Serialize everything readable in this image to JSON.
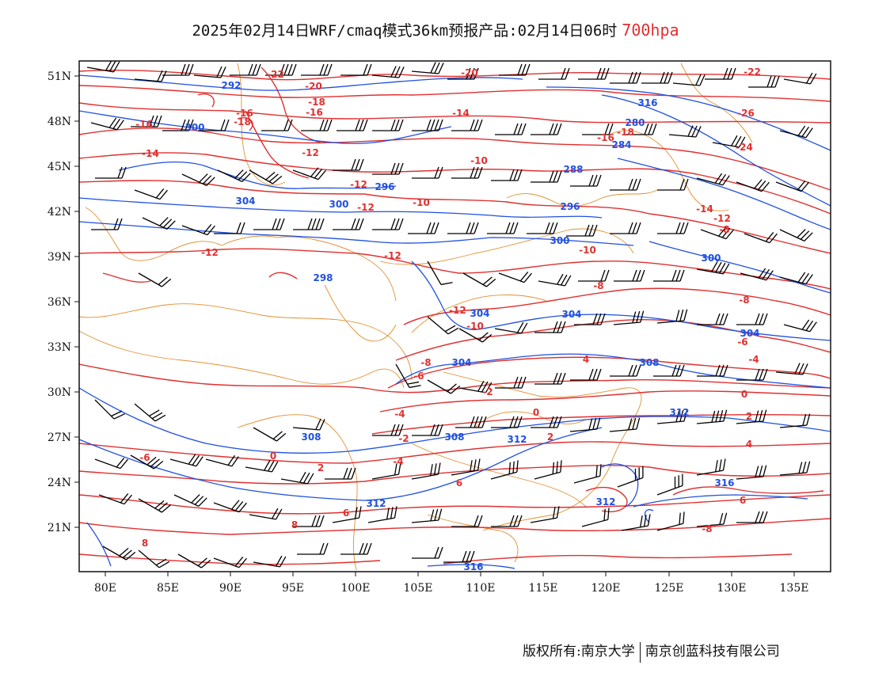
{
  "title": {
    "main": "2025年02月14日WRF/cmaq模式36km预报产品:02月14日06时",
    "level": "700hpa"
  },
  "colors": {
    "temperature": "#e03030",
    "height": "#2050e0",
    "boundary": "#e09030",
    "wind": "#000000"
  },
  "map": {
    "lon_range": [
      78,
      138
    ],
    "lat_range": [
      18,
      52
    ],
    "x_ticks": [
      "80E",
      "85E",
      "90E",
      "95E",
      "100E",
      "105E",
      "110E",
      "115E",
      "120E",
      "125E",
      "130E",
      "135E"
    ],
    "y_ticks": [
      "51N",
      "48N",
      "45N",
      "42N",
      "39N",
      "36N",
      "33N",
      "30N",
      "27N",
      "24N",
      "21N"
    ]
  },
  "height_labels": [
    "292",
    "300",
    "304",
    "300",
    "296",
    "298",
    "296",
    "300",
    "300",
    "304",
    "304",
    "304",
    "308",
    "308",
    "312",
    "308",
    "312",
    "312",
    "312",
    "316",
    "316",
    "316",
    "280",
    "284",
    "288",
    "304"
  ],
  "temp_labels": [
    "-22",
    "-20",
    "-18",
    "-16",
    "-16",
    "-14",
    "-14",
    "-12",
    "-12",
    "-10",
    "-10",
    "-12",
    "-12",
    "-12",
    "-10",
    "-8",
    "-8",
    "-6",
    "-4",
    "-2",
    "-2",
    "0",
    "0",
    "2",
    "2",
    "-4",
    "-6",
    "4",
    "6",
    "6",
    "8",
    "8",
    "-12",
    "-10",
    "-16",
    "-18",
    "-20",
    "-22",
    "-24",
    "-26",
    "-14",
    "-12",
    "-16",
    "-18",
    "-8",
    "-8",
    "-6",
    "-4",
    "0",
    "2",
    "4",
    "6",
    "-8"
  ],
  "footer": {
    "left": "版权所有:南京大学",
    "right": "南京创蓝科技有限公司"
  }
}
